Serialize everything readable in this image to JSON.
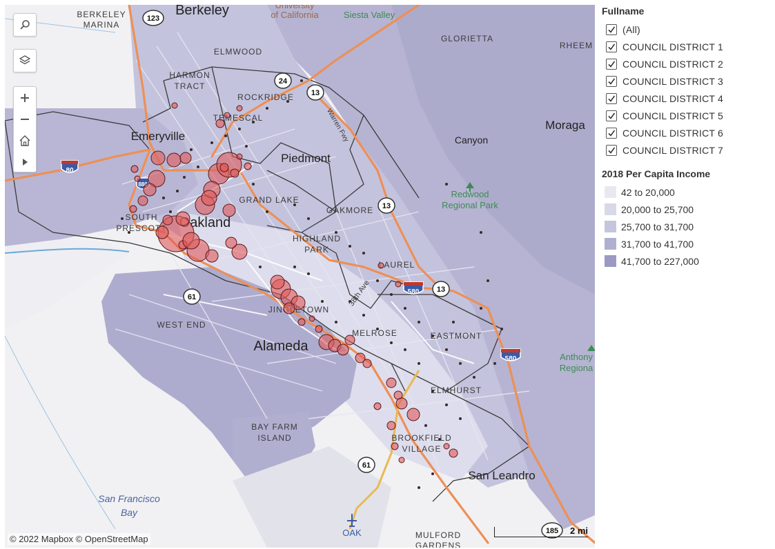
{
  "map": {
    "attribution": "© 2022 Mapbox  © OpenStreetMap",
    "scale_label": "2 mi",
    "search_icon": "search-icon",
    "layers_icon": "layers-icon",
    "zoom_in_icon": "plus-icon",
    "zoom_out_icon": "minus-icon",
    "home_icon": "home-icon",
    "pan_icon": "play-arrow-icon",
    "place_labels": [
      {
        "id": "berkeley",
        "text": "Berkeley"
      },
      {
        "id": "berkeley-marina-1",
        "text": "BERKELEY"
      },
      {
        "id": "berkeley-marina-2",
        "text": "MARINA"
      },
      {
        "id": "uc-1",
        "text": "University"
      },
      {
        "id": "uc-2",
        "text": "of California"
      },
      {
        "id": "siesta",
        "text": "Siesta Valley"
      },
      {
        "id": "glorietta",
        "text": "GLORIETTA"
      },
      {
        "id": "rheem",
        "text": "RHEEM"
      },
      {
        "id": "elmwood",
        "text": "ELMWOOD"
      },
      {
        "id": "harmon-1",
        "text": "HARMON"
      },
      {
        "id": "harmon-2",
        "text": "TRACT"
      },
      {
        "id": "rockridge",
        "text": "ROCKRIDGE"
      },
      {
        "id": "temescal",
        "text": "TEMESCAL"
      },
      {
        "id": "emeryville",
        "text": "Emeryville"
      },
      {
        "id": "moraga",
        "text": "Moraga"
      },
      {
        "id": "canyon",
        "text": "Canyon"
      },
      {
        "id": "piedmont",
        "text": "Piedmont"
      },
      {
        "id": "redwood-1",
        "text": "Redwood"
      },
      {
        "id": "redwood-2",
        "text": "Regional Park"
      },
      {
        "id": "grand-lake",
        "text": "GRAND LAKE"
      },
      {
        "id": "oakmore",
        "text": "OAKMORE"
      },
      {
        "id": "south-1",
        "text": "SOUTH"
      },
      {
        "id": "south-2",
        "text": "PRESCOTT"
      },
      {
        "id": "oakland",
        "text": "Oakland"
      },
      {
        "id": "highland-1",
        "text": "HIGHLAND"
      },
      {
        "id": "highland-2",
        "text": "PARK"
      },
      {
        "id": "laurel",
        "text": "LAUREL"
      },
      {
        "id": "west-end",
        "text": "WEST END"
      },
      {
        "id": "jingletown",
        "text": "JINGLETOWN"
      },
      {
        "id": "38th",
        "text": "38th Ave"
      },
      {
        "id": "melrose",
        "text": "MELROSE"
      },
      {
        "id": "eastmont",
        "text": "EASTMONT"
      },
      {
        "id": "alameda",
        "text": "Alameda"
      },
      {
        "id": "anthony-1",
        "text": "Anthony"
      },
      {
        "id": "anthony-2",
        "text": "Regiona"
      },
      {
        "id": "elmhurst",
        "text": "ELMHURST"
      },
      {
        "id": "bay-farm-1",
        "text": "BAY FARM"
      },
      {
        "id": "bay-farm-2",
        "text": "ISLAND"
      },
      {
        "id": "brookfield-1",
        "text": "BROOKFIELD"
      },
      {
        "id": "brookfield-2",
        "text": "VILLAGE"
      },
      {
        "id": "san-leandro",
        "text": "San Leandro"
      },
      {
        "id": "sf-bay-1",
        "text": "San Francisco"
      },
      {
        "id": "sf-bay-2",
        "text": "Bay"
      },
      {
        "id": "oak",
        "text": "OAK"
      },
      {
        "id": "mulford-1",
        "text": "MULFORD"
      },
      {
        "id": "mulford-2",
        "text": "GARDENS"
      },
      {
        "id": "warren",
        "text": "Warren Fwy"
      }
    ],
    "road_shields": [
      {
        "id": "r123",
        "text": "123"
      },
      {
        "id": "r24",
        "text": "24"
      },
      {
        "id": "r13a",
        "text": "13"
      },
      {
        "id": "i80",
        "text": "80"
      },
      {
        "id": "r13b",
        "text": "13"
      },
      {
        "id": "r61a",
        "text": "61"
      },
      {
        "id": "i580a",
        "text": "580"
      },
      {
        "id": "r13c",
        "text": "13"
      },
      {
        "id": "i580b",
        "text": "580"
      },
      {
        "id": "i880",
        "text": "880"
      },
      {
        "id": "r61b",
        "text": "61"
      },
      {
        "id": "r185",
        "text": "185"
      }
    ]
  },
  "filter": {
    "title": "Fullname",
    "items": [
      "(All)",
      "COUNCIL DISTRICT 1",
      "COUNCIL DISTRICT 2",
      "COUNCIL DISTRICT 3",
      "COUNCIL DISTRICT 4",
      "COUNCIL DISTRICT 5",
      "COUNCIL DISTRICT 6",
      "COUNCIL DISTRICT 7"
    ]
  },
  "income_legend": {
    "title": "2018 Per Capita Income",
    "items": [
      {
        "label": "42 to 20,000",
        "color": "#e9e8f1"
      },
      {
        "label": "20,000 to 25,700",
        "color": "#d9d8e8"
      },
      {
        "label": "25,700 to 31,700",
        "color": "#c6c5de"
      },
      {
        "label": "31,700 to 41,700",
        "color": "#b1afd0"
      },
      {
        "label": "41,700 to 227,000",
        "color": "#9c9ac3"
      }
    ]
  }
}
